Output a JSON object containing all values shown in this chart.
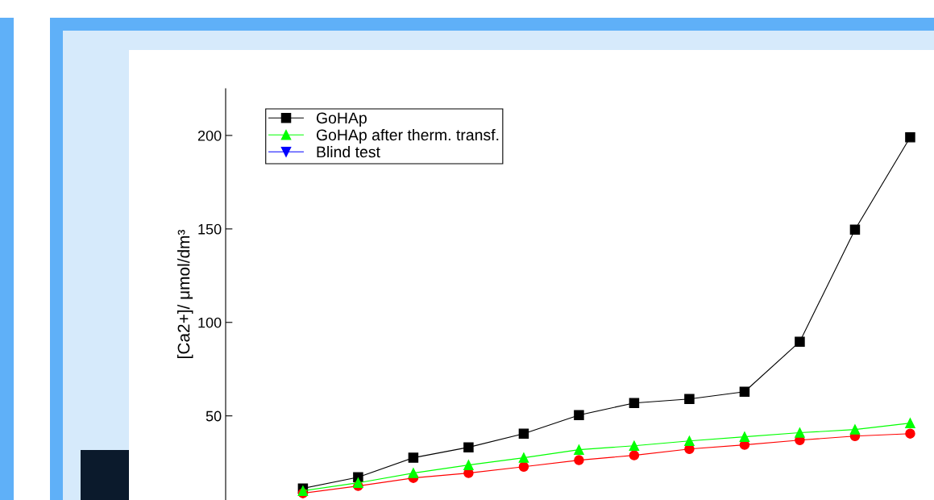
{
  "chart_data": {
    "type": "line",
    "ylabel": "[Ca2+]/ μmol/dm³",
    "categories": [
      null,
      null,
      null,
      null,
      null,
      null,
      null,
      null,
      null,
      null,
      null,
      null
    ],
    "series": [
      {
        "name": "GoHAp",
        "color": "#000000",
        "marker": "square",
        "values": [
          11.2,
          17.2,
          27.6,
          33.2,
          40.5,
          50.4,
          56.9,
          59,
          62.9,
          89.7,
          149.6,
          199
        ]
      },
      {
        "color": "#ff0000",
        "marker": "circle",
        "values": [
          8.6,
          12.5,
          16.8,
          19.4,
          22.8,
          26.3,
          28.9,
          32.3,
          34.5,
          37,
          39.2,
          40.5
        ]
      },
      {
        "name": "GoHAp after therm. transf.",
        "color": "#00ff00",
        "marker": "triangle",
        "values": [
          9.9,
          14.2,
          19.4,
          23.7,
          27.6,
          31.9,
          34,
          36.6,
          38.8,
          41,
          42.7,
          46.1
        ]
      },
      {
        "name": "Blind test",
        "color": "#0000ff",
        "marker": "triangle_down",
        "values": [
          null,
          null,
          null,
          null,
          null,
          null,
          null,
          null,
          null,
          null,
          null,
          null
        ]
      }
    ],
    "ylim": [
      5,
      225
    ],
    "yticks": [
      50,
      100,
      150,
      200
    ],
    "tick_labels": "y",
    "grid": false,
    "legend": "top left"
  }
}
